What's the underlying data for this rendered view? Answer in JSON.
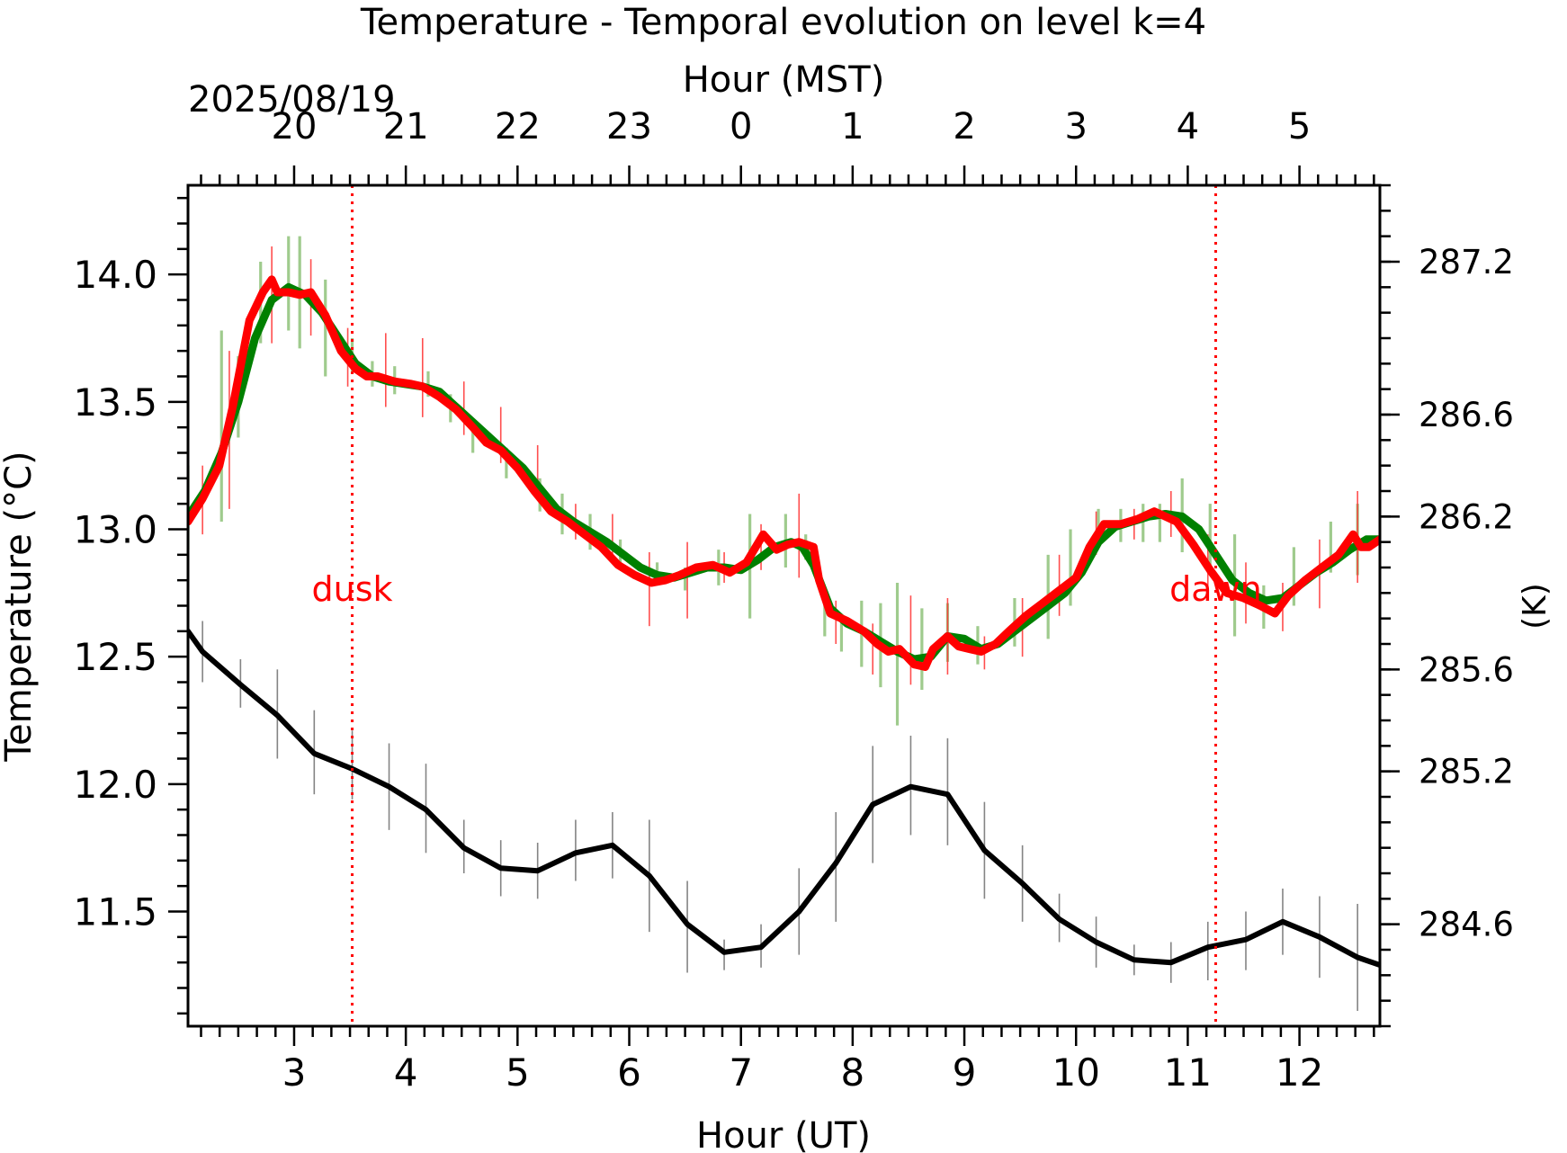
{
  "chart_data": {
    "type": "line",
    "title": "Temperature - Temporal evolution on level k=4",
    "date_label": "2025/08/19",
    "xlabel": "Hour (UT)",
    "xlabel_top": "Hour (MST)",
    "ylabel": "Temperature (°C)",
    "ylabel_right": "(K)",
    "xlim": [
      2.05,
      12.72
    ],
    "ylim": [
      11.05,
      14.35
    ],
    "x_ticks": [
      3,
      4,
      5,
      6,
      7,
      8,
      9,
      10,
      11,
      12
    ],
    "x_top_ticks": [
      {
        "ut": 3,
        "label": "20"
      },
      {
        "ut": 4,
        "label": "21"
      },
      {
        "ut": 5,
        "label": "22"
      },
      {
        "ut": 6,
        "label": "23"
      },
      {
        "ut": 7,
        "label": "0"
      },
      {
        "ut": 8,
        "label": "1"
      },
      {
        "ut": 9,
        "label": "2"
      },
      {
        "ut": 10,
        "label": "3"
      },
      {
        "ut": 11,
        "label": "4"
      },
      {
        "ut": 12,
        "label": "5"
      }
    ],
    "y_ticks": [
      11.5,
      12.0,
      12.5,
      13.0,
      13.5,
      14.0
    ],
    "y_right_ticks": [
      {
        "k": 284.6,
        "label": "284.6"
      },
      {
        "k": 285.2,
        "label": "285.2"
      },
      {
        "k": 285.6,
        "label": "285.6"
      },
      {
        "k": 286.2,
        "label": "286.2"
      },
      {
        "k": 286.6,
        "label": "286.6"
      },
      {
        "k": 287.2,
        "label": "287.2"
      }
    ],
    "markers": [
      {
        "x": 3.52,
        "label": "dusk",
        "color": "#ff0000"
      },
      {
        "x": 11.25,
        "label": "dawn",
        "color": "#ff0000"
      }
    ],
    "series": [
      {
        "color": "#ff0000",
        "style": "thick-line-with-error-bars",
        "x": [
          2.05,
          2.18,
          2.33,
          2.45,
          2.6,
          2.72,
          2.8,
          2.85,
          2.95,
          3.05,
          3.15,
          3.28,
          3.42,
          3.55,
          3.65,
          3.75,
          3.9,
          4.05,
          4.15,
          4.3,
          4.45,
          4.6,
          4.72,
          4.85,
          5.0,
          5.15,
          5.3,
          5.45,
          5.6,
          5.75,
          5.9,
          6.05,
          6.2,
          6.32,
          6.45,
          6.6,
          6.75,
          6.9,
          7.05,
          7.2,
          7.32,
          7.42,
          7.52,
          7.65,
          7.7,
          7.8,
          7.95,
          8.1,
          8.22,
          8.32,
          8.42,
          8.55,
          8.65,
          8.72,
          8.85,
          8.95,
          9.05,
          9.15,
          9.28,
          9.4,
          9.55,
          9.7,
          9.85,
          10.0,
          10.12,
          10.25,
          10.4,
          10.55,
          10.7,
          10.8,
          10.9,
          11.05,
          11.2,
          11.35,
          11.5,
          11.65,
          11.78,
          11.9,
          12.05,
          12.2,
          12.35,
          12.48,
          12.55,
          12.62,
          12.72
        ],
        "y": [
          13.03,
          13.12,
          13.25,
          13.48,
          13.82,
          13.93,
          13.98,
          13.93,
          13.93,
          13.92,
          13.93,
          13.84,
          13.7,
          13.63,
          13.6,
          13.6,
          13.58,
          13.57,
          13.56,
          13.52,
          13.47,
          13.4,
          13.34,
          13.31,
          13.24,
          13.15,
          13.07,
          13.03,
          12.98,
          12.93,
          12.86,
          12.82,
          12.79,
          12.8,
          12.82,
          12.85,
          12.86,
          12.83,
          12.87,
          12.98,
          12.92,
          12.94,
          12.95,
          12.93,
          12.8,
          12.67,
          12.64,
          12.6,
          12.55,
          12.52,
          12.53,
          12.47,
          12.46,
          12.53,
          12.58,
          12.54,
          12.53,
          12.52,
          12.55,
          12.6,
          12.66,
          12.71,
          12.76,
          12.81,
          12.93,
          13.02,
          13.02,
          13.04,
          13.07,
          13.05,
          13.03,
          12.94,
          12.84,
          12.75,
          12.73,
          12.7,
          12.67,
          12.74,
          12.8,
          12.85,
          12.9,
          12.98,
          12.93,
          12.93,
          12.96
        ],
        "error_x": [
          2.18,
          2.42,
          2.8,
          3.15,
          3.48,
          3.82,
          4.15,
          4.52,
          4.85,
          5.18,
          5.52,
          5.85,
          6.18,
          6.52,
          6.85,
          7.18,
          7.52,
          7.85,
          8.18,
          8.52,
          8.85,
          9.18,
          9.52,
          9.85,
          10.18,
          10.52,
          10.85,
          11.18,
          11.52,
          11.85,
          12.18,
          12.52
        ],
        "error_y_low": [
          12.98,
          13.08,
          13.73,
          13.76,
          13.56,
          13.48,
          13.44,
          13.37,
          13.26,
          13.15,
          12.96,
          12.88,
          12.62,
          12.65,
          12.79,
          12.84,
          12.81,
          12.55,
          12.43,
          12.39,
          12.43,
          12.45,
          12.5,
          12.66,
          12.9,
          12.96,
          12.97,
          12.77,
          12.63,
          12.6,
          12.69,
          12.79
        ],
        "error_y_high": [
          13.25,
          13.7,
          14.11,
          14.06,
          13.79,
          13.77,
          13.75,
          13.58,
          13.48,
          13.33,
          13.1,
          13.06,
          12.91,
          12.95,
          12.91,
          13.02,
          13.14,
          12.72,
          12.63,
          12.74,
          12.73,
          12.58,
          12.73,
          12.9,
          13.07,
          13.08,
          13.15,
          12.98,
          12.87,
          12.79,
          12.96,
          13.15
        ]
      },
      {
        "color": "#008000",
        "style": "smooth-line-with-error-bars",
        "x": [
          2.05,
          2.2,
          2.35,
          2.5,
          2.65,
          2.8,
          2.95,
          3.1,
          3.25,
          3.4,
          3.55,
          3.7,
          3.85,
          4.0,
          4.15,
          4.3,
          4.45,
          4.6,
          4.75,
          4.9,
          5.05,
          5.2,
          5.35,
          5.5,
          5.65,
          5.8,
          5.95,
          6.1,
          6.25,
          6.4,
          6.55,
          6.7,
          6.85,
          7.0,
          7.15,
          7.3,
          7.45,
          7.55,
          7.65,
          7.8,
          7.95,
          8.1,
          8.25,
          8.4,
          8.55,
          8.7,
          8.85,
          9.0,
          9.15,
          9.3,
          9.45,
          9.6,
          9.75,
          9.9,
          10.05,
          10.2,
          10.35,
          10.5,
          10.65,
          10.8,
          10.95,
          11.1,
          11.25,
          11.4,
          11.55,
          11.7,
          11.85,
          12.0,
          12.15,
          12.3,
          12.45,
          12.6,
          12.72
        ],
        "y": [
          13.05,
          13.15,
          13.3,
          13.5,
          13.75,
          13.9,
          13.95,
          13.92,
          13.85,
          13.75,
          13.65,
          13.6,
          13.58,
          13.57,
          13.56,
          13.54,
          13.48,
          13.42,
          13.36,
          13.3,
          13.24,
          13.16,
          13.08,
          13.03,
          12.99,
          12.95,
          12.9,
          12.85,
          12.82,
          12.81,
          12.83,
          12.85,
          12.85,
          12.84,
          12.88,
          12.93,
          12.95,
          12.93,
          12.86,
          12.69,
          12.63,
          12.6,
          12.56,
          12.52,
          12.49,
          12.5,
          12.58,
          12.57,
          12.53,
          12.55,
          12.6,
          12.65,
          12.7,
          12.75,
          12.83,
          12.95,
          13.01,
          13.03,
          13.05,
          13.06,
          13.05,
          13.0,
          12.9,
          12.8,
          12.75,
          12.72,
          12.73,
          12.78,
          12.83,
          12.87,
          12.92,
          12.96,
          12.96
        ],
        "error_x": [
          2.05,
          2.35,
          2.5,
          2.7,
          2.95,
          3.05,
          3.28,
          3.52,
          3.7,
          3.9,
          4.2,
          4.4,
          4.6,
          4.9,
          5.2,
          5.4,
          5.65,
          5.92,
          6.25,
          6.5,
          6.8,
          7.08,
          7.4,
          7.58,
          7.75,
          7.9,
          8.08,
          8.25,
          8.4,
          8.62,
          8.85,
          9.12,
          9.45,
          9.75,
          9.95,
          10.2,
          10.4,
          10.6,
          10.75,
          10.95,
          11.2,
          11.42,
          11.68,
          11.95,
          12.28,
          12.52
        ],
        "error_y_low": [
          12.92,
          13.03,
          13.36,
          13.73,
          13.78,
          13.71,
          13.6,
          13.61,
          13.56,
          13.53,
          13.52,
          13.42,
          13.3,
          13.2,
          13.07,
          12.98,
          12.92,
          12.85,
          12.78,
          12.76,
          12.78,
          12.65,
          12.85,
          12.88,
          12.58,
          12.52,
          12.46,
          12.38,
          12.23,
          12.37,
          12.48,
          12.47,
          12.54,
          12.57,
          12.7,
          12.94,
          12.95,
          12.95,
          12.95,
          12.91,
          12.82,
          12.58,
          12.61,
          12.7,
          12.83,
          12.82
        ],
        "error_y_high": [
          13.25,
          13.78,
          13.68,
          14.05,
          14.15,
          14.15,
          13.98,
          13.75,
          13.66,
          13.64,
          13.62,
          13.53,
          13.42,
          13.32,
          13.2,
          13.14,
          13.06,
          12.96,
          12.87,
          12.85,
          12.92,
          13.06,
          13.06,
          12.98,
          12.75,
          12.66,
          12.72,
          12.71,
          12.79,
          12.69,
          12.71,
          12.62,
          12.73,
          12.9,
          13.0,
          13.08,
          13.08,
          13.1,
          13.1,
          13.2,
          13.1,
          12.98,
          12.78,
          12.93,
          13.03,
          13.1
        ]
      },
      {
        "color": "#000000",
        "style": "line-with-error-bars",
        "x": [
          2.05,
          2.18,
          2.52,
          2.85,
          3.18,
          3.52,
          3.85,
          4.18,
          4.52,
          4.85,
          5.18,
          5.52,
          5.85,
          6.18,
          6.52,
          6.85,
          7.18,
          7.52,
          7.85,
          8.18,
          8.52,
          8.85,
          9.18,
          9.52,
          9.85,
          10.18,
          10.52,
          10.85,
          11.18,
          11.52,
          11.85,
          12.18,
          12.52,
          12.72
        ],
        "y": [
          12.6,
          12.52,
          12.39,
          12.27,
          12.12,
          12.06,
          11.99,
          11.9,
          11.75,
          11.67,
          11.66,
          11.73,
          11.76,
          11.64,
          11.45,
          11.34,
          11.36,
          11.5,
          11.69,
          11.92,
          11.99,
          11.96,
          11.74,
          11.61,
          11.47,
          11.38,
          11.31,
          11.3,
          11.36,
          11.39,
          11.46,
          11.4,
          11.32,
          11.29
        ],
        "error_x": [
          2.18,
          2.52,
          2.85,
          3.18,
          3.52,
          3.85,
          4.18,
          4.52,
          4.85,
          5.18,
          5.52,
          5.85,
          6.18,
          6.52,
          6.85,
          7.18,
          7.52,
          7.85,
          8.18,
          8.52,
          8.85,
          9.18,
          9.52,
          9.85,
          10.18,
          10.52,
          10.85,
          11.18,
          11.52,
          11.85,
          12.18,
          12.52
        ],
        "error_y_low": [
          12.4,
          12.3,
          12.1,
          11.96,
          11.94,
          11.82,
          11.73,
          11.65,
          11.56,
          11.55,
          11.62,
          11.63,
          11.42,
          11.26,
          11.27,
          11.28,
          11.33,
          11.46,
          11.69,
          11.8,
          11.76,
          11.55,
          11.46,
          11.38,
          11.28,
          11.25,
          11.22,
          11.23,
          11.27,
          11.33,
          11.24,
          11.11
        ],
        "error_y_high": [
          12.64,
          12.49,
          12.45,
          12.29,
          12.21,
          12.16,
          12.08,
          11.86,
          11.78,
          11.77,
          11.86,
          11.89,
          11.86,
          11.62,
          11.39,
          11.45,
          11.67,
          11.89,
          12.15,
          12.19,
          12.18,
          11.93,
          11.76,
          11.57,
          11.48,
          11.37,
          11.38,
          11.46,
          11.5,
          11.59,
          11.56,
          11.53
        ]
      }
    ]
  }
}
